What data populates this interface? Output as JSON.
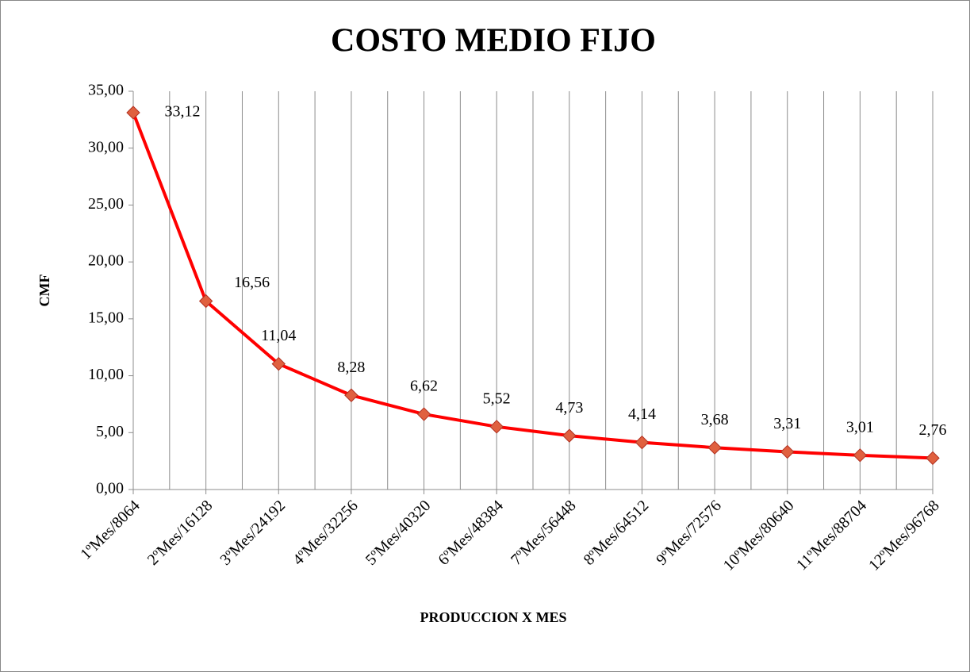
{
  "chart_data": {
    "type": "line",
    "title": "COSTO MEDIO FIJO",
    "x_label": "PRODUCCION X MES",
    "y_label": "CMF",
    "categories": [
      "1ºMes/8064",
      "2ºMes/16128",
      "3ºMes/24192",
      "4ºMes/32256",
      "5ºMes/40320",
      "6ºMes/48384",
      "7ºMes/56448",
      "8ºMes/64512",
      "9ºMes/72576",
      "10ºMes/80640",
      "11ºMes/88704",
      "12ºMes/96768"
    ],
    "values": [
      33.12,
      16.56,
      11.04,
      8.28,
      6.62,
      5.52,
      4.73,
      4.14,
      3.68,
      3.31,
      3.01,
      2.76
    ],
    "value_labels": [
      "33,12",
      "16,56",
      "11,04",
      "8,28",
      "6,62",
      "5,52",
      "4,73",
      "4,14",
      "3,68",
      "3,31",
      "3,01",
      "2,76"
    ],
    "color": "#ff0000",
    "marker_color": "#e0603f",
    "ylim": [
      0,
      35
    ],
    "yticks": [
      {
        "value": 0,
        "label": "0,00"
      },
      {
        "value": 5,
        "label": "5,00"
      },
      {
        "value": 10,
        "label": "10,00"
      },
      {
        "value": 15,
        "label": "15,00"
      },
      {
        "value": 20,
        "label": "20,00"
      },
      {
        "value": 25,
        "label": "25,00"
      },
      {
        "value": 30,
        "label": "30,00"
      },
      {
        "value": 35,
        "label": "35,00"
      }
    ],
    "xgrid": true
  }
}
